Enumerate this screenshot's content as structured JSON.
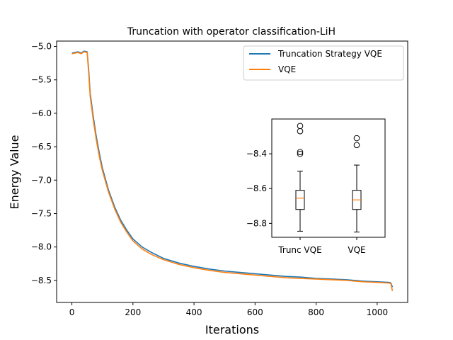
{
  "chart_data": [
    {
      "type": "line",
      "title": "Truncation with operator classification-LiH",
      "xlabel": "Iterations",
      "ylabel": "Energy Value",
      "xlim": [
        -50,
        1100
      ],
      "ylim": [
        -8.83,
        -4.92
      ],
      "xticks": [
        0,
        200,
        400,
        600,
        800,
        1000
      ],
      "xtick_labels": [
        "0",
        "200",
        "400",
        "600",
        "800",
        "1000"
      ],
      "yticks": [
        -5.0,
        -5.5,
        -6.0,
        -6.5,
        -7.0,
        -7.5,
        -8.0,
        -8.5
      ],
      "ytick_labels": [
        "−5.0",
        "−5.5",
        "−6.0",
        "−6.5",
        "−7.0",
        "−7.5",
        "−8.0",
        "−8.5"
      ],
      "grid": false,
      "legend": "upper right",
      "series": [
        {
          "name": "Truncation Strategy VQE",
          "color": "#1f77b4",
          "x": [
            0,
            10,
            20,
            30,
            40,
            50,
            55,
            60,
            70,
            80,
            90,
            100,
            120,
            140,
            160,
            180,
            200,
            230,
            260,
            300,
            350,
            400,
            450,
            500,
            550,
            600,
            650,
            700,
            750,
            800,
            850,
            900,
            950,
            1000,
            1040,
            1045,
            1050
          ],
          "y": [
            -5.1,
            -5.09,
            -5.08,
            -5.1,
            -5.07,
            -5.08,
            -5.35,
            -5.7,
            -6.05,
            -6.35,
            -6.6,
            -6.82,
            -7.15,
            -7.4,
            -7.6,
            -7.75,
            -7.88,
            -8.0,
            -8.08,
            -8.17,
            -8.24,
            -8.29,
            -8.33,
            -8.36,
            -8.38,
            -8.4,
            -8.42,
            -8.44,
            -8.45,
            -8.47,
            -8.48,
            -8.49,
            -8.51,
            -8.52,
            -8.53,
            -8.54,
            -8.6
          ]
        },
        {
          "name": "VQE",
          "color": "#ff7f0e",
          "x": [
            0,
            10,
            20,
            30,
            40,
            50,
            55,
            60,
            70,
            80,
            90,
            100,
            120,
            140,
            160,
            180,
            200,
            230,
            260,
            300,
            350,
            400,
            450,
            500,
            550,
            600,
            650,
            700,
            750,
            800,
            850,
            900,
            950,
            1000,
            1040,
            1045,
            1050
          ],
          "y": [
            -5.11,
            -5.1,
            -5.09,
            -5.11,
            -5.08,
            -5.09,
            -5.4,
            -5.75,
            -6.1,
            -6.4,
            -6.65,
            -6.86,
            -7.18,
            -7.43,
            -7.63,
            -7.78,
            -7.91,
            -8.03,
            -8.11,
            -8.19,
            -8.26,
            -8.31,
            -8.35,
            -8.38,
            -8.4,
            -8.42,
            -8.44,
            -8.46,
            -8.47,
            -8.48,
            -8.49,
            -8.5,
            -8.52,
            -8.53,
            -8.54,
            -8.55,
            -8.66
          ]
        }
      ]
    },
    {
      "type": "box",
      "categories": [
        "Trunc VQE",
        "VQE"
      ],
      "ylim": [
        -8.88,
        -8.2
      ],
      "yticks": [
        -8.4,
        -8.6,
        -8.8
      ],
      "ytick_labels": [
        "−8.4",
        "−8.6",
        "−8.8"
      ],
      "median_color": "#ff7f0e",
      "boxes": [
        {
          "whisker_low": -8.845,
          "q1": -8.72,
          "median": -8.655,
          "q3": -8.61,
          "whisker_high": -8.5,
          "outliers": [
            -8.24,
            -8.27,
            -8.39,
            -8.4
          ]
        },
        {
          "whisker_low": -8.85,
          "q1": -8.72,
          "median": -8.665,
          "q3": -8.61,
          "whisker_high": -8.465,
          "outliers": [
            -8.31,
            -8.35
          ]
        }
      ]
    }
  ]
}
